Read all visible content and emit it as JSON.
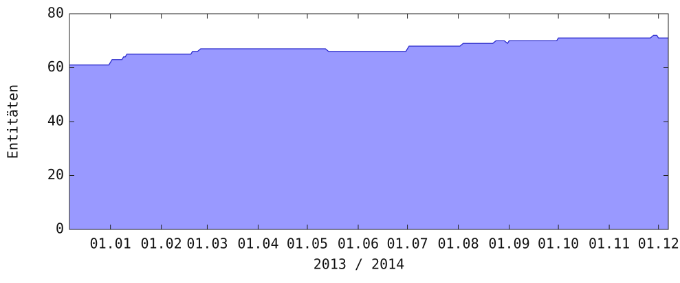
{
  "chart_data": {
    "type": "area",
    "x_label": "2013 / 2014",
    "y_label": "Entitäten",
    "x": [
      -25,
      -1,
      1,
      7,
      8,
      9,
      10,
      49,
      50,
      53,
      55,
      131,
      133,
      180,
      182,
      213,
      215,
      233,
      235,
      240,
      242,
      243,
      272,
      273,
      329,
      331,
      333,
      334,
      340
    ],
    "values": [
      61,
      61,
      63,
      63,
      64,
      64,
      65,
      65,
      66,
      66,
      67,
      67,
      66,
      66,
      68,
      68,
      69,
      69,
      70,
      70,
      69,
      70,
      70,
      71,
      71,
      72,
      72,
      71,
      71
    ],
    "color": "#9999ff",
    "line_color": "#2a2acc",
    "xlim": [
      -25,
      340
    ],
    "xticks": [
      {
        "value": 0,
        "label": "01.01"
      },
      {
        "value": 31,
        "label": "01.02"
      },
      {
        "value": 59,
        "label": "01.03"
      },
      {
        "value": 90,
        "label": "01.04"
      },
      {
        "value": 120,
        "label": "01.05"
      },
      {
        "value": 151,
        "label": "01.06"
      },
      {
        "value": 181,
        "label": "01.07"
      },
      {
        "value": 212,
        "label": "01.08"
      },
      {
        "value": 243,
        "label": "01.09"
      },
      {
        "value": 273,
        "label": "01.10"
      },
      {
        "value": 304,
        "label": "01.11"
      },
      {
        "value": 334,
        "label": "01.12"
      }
    ],
    "ylim": [
      0,
      80
    ],
    "yticks": [
      0,
      20,
      40,
      60,
      80
    ],
    "grid": false
  }
}
